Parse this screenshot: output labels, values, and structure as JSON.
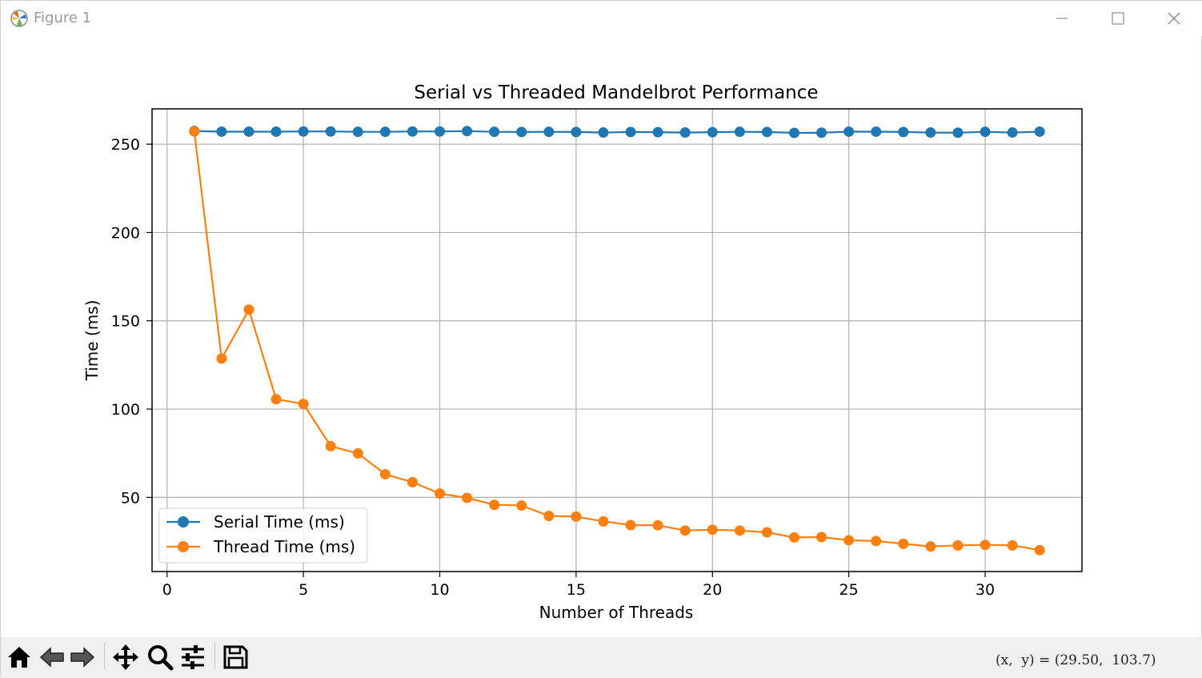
{
  "window": {
    "title": "Figure 1",
    "controls": [
      "minimize-icon",
      "maximize-icon",
      "close-icon"
    ]
  },
  "toolbar": {
    "tools": [
      "home-icon",
      "back-icon",
      "forward-icon",
      "pan-icon",
      "zoom-icon",
      "configure-subplots-icon",
      "save-icon"
    ],
    "coords_text": "(x,  y) = (29.50,  103.7)"
  },
  "colors": {
    "serial": "#1f77b4",
    "thread": "#ff7f0e",
    "grid": "#b0b0b0"
  },
  "chart_data": {
    "type": "line",
    "title": "Serial vs Threaded Mandelbrot Performance",
    "xlabel": "Number of Threads",
    "ylabel": "Time (ms)",
    "xlim": [
      -0.55,
      33.55
    ],
    "ylim": [
      8,
      270
    ],
    "xticks": [
      0,
      5,
      10,
      15,
      20,
      25,
      30
    ],
    "yticks": [
      50,
      100,
      150,
      200,
      250
    ],
    "grid": true,
    "legend_position": "lower-left",
    "x": [
      1,
      2,
      3,
      4,
      5,
      6,
      7,
      8,
      9,
      10,
      11,
      12,
      13,
      14,
      15,
      16,
      17,
      18,
      19,
      20,
      21,
      22,
      23,
      24,
      25,
      26,
      27,
      28,
      29,
      30,
      31,
      32
    ],
    "series": [
      {
        "name": "Serial Time (ms)",
        "marker": "circle",
        "values": [
          257.5,
          257.1,
          257.1,
          257.1,
          257.2,
          257.2,
          257.0,
          257.0,
          257.2,
          257.2,
          257.4,
          257.0,
          256.9,
          257.0,
          256.9,
          256.6,
          256.9,
          256.8,
          256.6,
          256.8,
          257.0,
          256.9,
          256.4,
          256.5,
          257.1,
          257.1,
          256.9,
          256.6,
          256.5,
          257.0,
          256.6,
          257.1
        ]
      },
      {
        "name": "Thread Time (ms)",
        "marker": "circle",
        "values": [
          257.2,
          128.6,
          156.3,
          105.6,
          102.9,
          79.0,
          74.9,
          63.1,
          58.6,
          52.2,
          49.7,
          45.8,
          45.4,
          39.5,
          39.1,
          36.4,
          34.3,
          34.2,
          31.2,
          31.7,
          31.2,
          30.2,
          27.3,
          27.5,
          25.7,
          25.3,
          23.7,
          22.2,
          22.8,
          23.1,
          22.8,
          20.1
        ]
      }
    ]
  }
}
